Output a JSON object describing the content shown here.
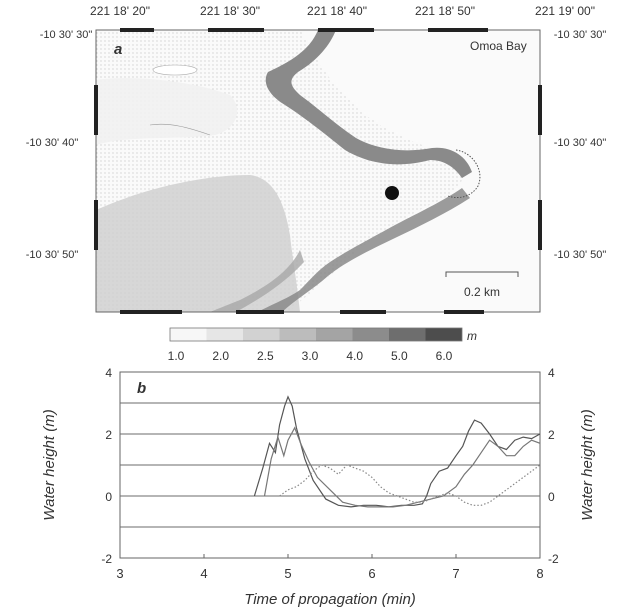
{
  "panel_a": {
    "label": "a",
    "place_label": "Omoa Bay",
    "scale_bar_label": "0.2 km",
    "top_ticks": [
      "221 18' 20\"",
      "221 18' 30\"",
      "221 18' 40\"",
      "221 18' 50\"",
      "221 19' 00\""
    ],
    "left_ticks": [
      "-10 30' 30\"",
      "-10 30' 40\"",
      "-10 30' 50\""
    ],
    "right_ticks": [
      "-10 30' 30\"",
      "-10 30' 40\"",
      "-10 30' 50\""
    ],
    "colorbar": {
      "unit": "m",
      "ticks": [
        "1.0",
        "2.0",
        "2.5",
        "3.0",
        "4.0",
        "5.0",
        "6.0"
      ],
      "fills": [
        "#f7f7f7",
        "#e6e6e6",
        "#d2d2d2",
        "#bcbcbc",
        "#a4a4a4",
        "#8c8c8c",
        "#6e6e6e",
        "#4d4d4d"
      ]
    },
    "colors": {
      "land": "#fafafa",
      "water_light": "#e9e9e9",
      "water_mid": "#d0d0d0",
      "shore_dark": "#8a8a8a",
      "marker": "#111111"
    }
  },
  "chart_data": {
    "type": "line",
    "panel_label": "b",
    "xlabel": "Time of propagation (min)",
    "ylabel": "Water height (m)",
    "ylabel_right": "Water height (m)",
    "xlim": [
      3,
      8
    ],
    "ylim": [
      -2,
      4
    ],
    "xticks": [
      "3",
      "4",
      "5",
      "6",
      "7",
      "8"
    ],
    "yticks": [
      "-2",
      "0",
      "2",
      "4"
    ],
    "grid": true,
    "series": [
      {
        "color": "#555555",
        "style": "solid",
        "x": [
          4.6,
          4.7,
          4.78,
          4.85,
          4.9,
          4.96,
          5.0,
          5.05,
          5.1,
          5.2,
          5.3,
          5.45,
          5.6,
          5.75,
          5.9,
          6.05,
          6.2,
          6.35,
          6.5,
          6.6,
          6.65,
          6.7,
          6.8,
          6.9,
          7.0,
          7.08,
          7.15,
          7.22,
          7.3,
          7.4,
          7.5,
          7.6,
          7.7,
          7.8,
          7.9,
          8.0
        ],
        "y": [
          0.0,
          0.9,
          1.7,
          1.4,
          2.3,
          2.9,
          3.2,
          2.9,
          2.2,
          1.2,
          0.5,
          -0.1,
          -0.3,
          -0.35,
          -0.3,
          -0.3,
          -0.35,
          -0.3,
          -0.3,
          -0.25,
          0.0,
          0.4,
          0.8,
          0.9,
          1.3,
          1.6,
          2.1,
          2.45,
          2.35,
          2.0,
          1.6,
          1.5,
          1.8,
          1.9,
          1.85,
          2.0
        ]
      },
      {
        "color": "#777777",
        "style": "solid",
        "x": [
          4.72,
          4.8,
          4.88,
          4.95,
          5.0,
          5.08,
          5.15,
          5.25,
          5.35,
          5.5,
          5.65,
          5.8,
          5.95,
          6.1,
          6.25,
          6.4,
          6.55,
          6.7,
          6.85,
          7.0,
          7.1,
          7.2,
          7.3,
          7.4,
          7.5,
          7.6,
          7.7,
          7.8,
          7.9,
          8.0
        ],
        "y": [
          0.0,
          1.2,
          1.9,
          1.3,
          1.8,
          2.2,
          1.7,
          1.1,
          0.6,
          0.2,
          -0.2,
          -0.3,
          -0.35,
          -0.35,
          -0.35,
          -0.3,
          -0.2,
          -0.1,
          0.0,
          0.3,
          0.7,
          1.0,
          1.4,
          1.8,
          1.6,
          1.3,
          1.3,
          1.6,
          1.8,
          1.7
        ]
      },
      {
        "color": "#888888",
        "style": "dotted",
        "x": [
          4.9,
          5.0,
          5.1,
          5.2,
          5.3,
          5.4,
          5.5,
          5.6,
          5.7,
          5.8,
          5.9,
          6.0,
          6.1,
          6.2,
          6.3,
          6.4,
          6.5,
          6.6,
          6.7,
          6.8,
          6.9,
          7.0,
          7.1,
          7.2,
          7.3,
          7.4,
          7.5,
          7.6,
          7.7,
          7.8,
          7.9,
          8.0
        ],
        "y": [
          0.0,
          0.2,
          0.3,
          0.5,
          0.8,
          1.0,
          0.9,
          0.7,
          1.0,
          0.9,
          0.8,
          0.6,
          0.3,
          0.1,
          0.0,
          -0.1,
          -0.2,
          -0.2,
          -0.1,
          0.0,
          0.1,
          0.0,
          -0.2,
          -0.3,
          -0.3,
          -0.2,
          0.0,
          0.2,
          0.4,
          0.6,
          0.8,
          1.0
        ]
      }
    ]
  }
}
